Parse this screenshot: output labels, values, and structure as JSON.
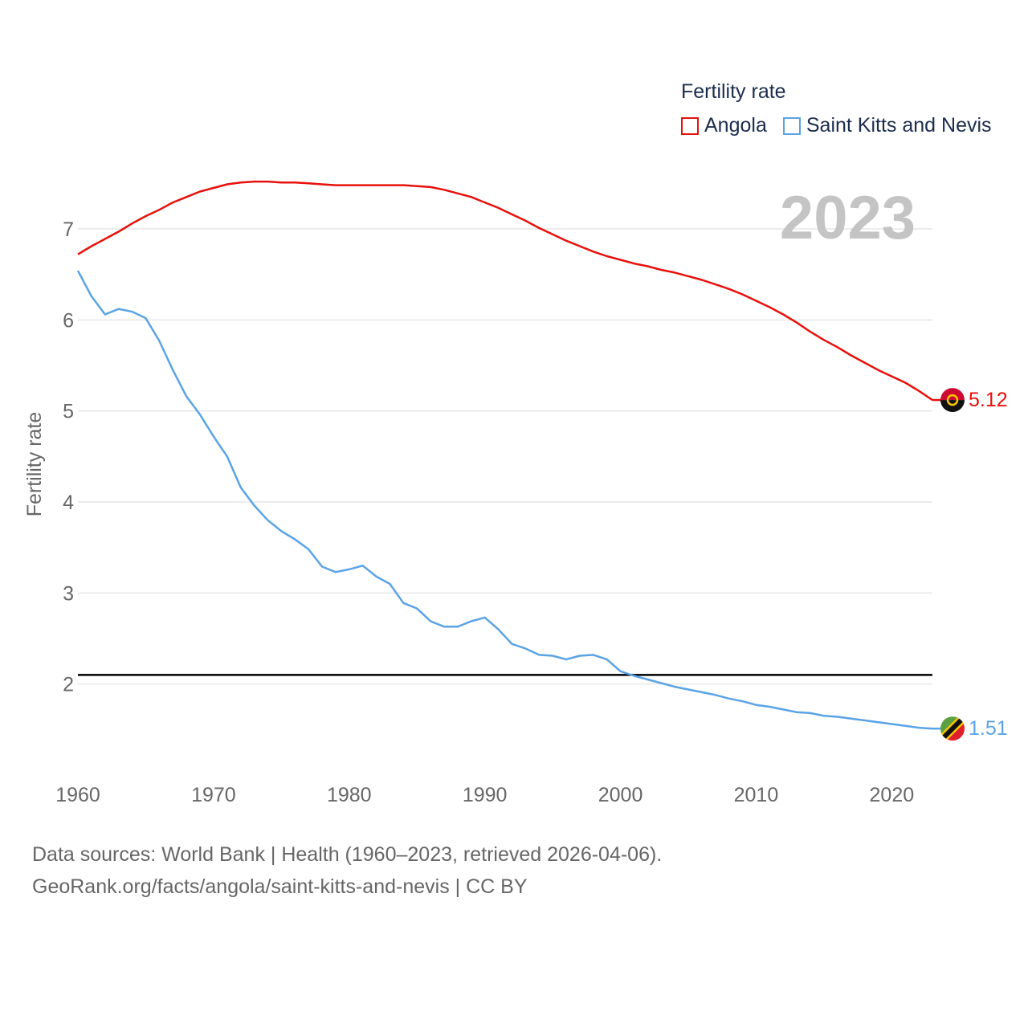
{
  "legend": {
    "title": "Fertility rate",
    "items": [
      {
        "label": "Angola",
        "color": "#e8100c"
      },
      {
        "label": "Saint Kitts and Nevis",
        "color": "#5aa3e6"
      }
    ]
  },
  "year_label": "2023",
  "footer": {
    "line1": "Data sources: World Bank | Health (1960–2023, retrieved 2026-04-06).",
    "line2": "GeoRank.org/facts/angola/saint-kitts-and-nevis | CC BY"
  },
  "chart_data": {
    "type": "line",
    "title": "",
    "xlabel": "",
    "ylabel": "Fertility rate",
    "xlim": [
      1960,
      2023
    ],
    "ylim": [
      1.0,
      7.75
    ],
    "xticks": [
      1960,
      1970,
      1980,
      1990,
      2000,
      2010,
      2020
    ],
    "yticks": [
      2,
      3,
      4,
      5,
      6,
      7
    ],
    "reference_line": {
      "y": 2.1,
      "color": "#000000"
    },
    "x": [
      1960,
      1961,
      1962,
      1963,
      1964,
      1965,
      1966,
      1967,
      1968,
      1969,
      1970,
      1971,
      1972,
      1973,
      1974,
      1975,
      1976,
      1977,
      1978,
      1979,
      1980,
      1981,
      1982,
      1983,
      1984,
      1985,
      1986,
      1987,
      1988,
      1989,
      1990,
      1991,
      1992,
      1993,
      1994,
      1995,
      1996,
      1997,
      1998,
      1999,
      2000,
      2001,
      2002,
      2003,
      2004,
      2005,
      2006,
      2007,
      2008,
      2009,
      2010,
      2011,
      2012,
      2013,
      2014,
      2015,
      2016,
      2017,
      2018,
      2019,
      2020,
      2021,
      2022,
      2023
    ],
    "series": [
      {
        "name": "Angola",
        "color": "#e8100c",
        "end_label": "5.12",
        "values": [
          6.72,
          6.81,
          6.89,
          6.97,
          7.06,
          7.14,
          7.21,
          7.29,
          7.35,
          7.41,
          7.45,
          7.49,
          7.51,
          7.52,
          7.52,
          7.51,
          7.51,
          7.5,
          7.49,
          7.48,
          7.48,
          7.48,
          7.48,
          7.48,
          7.48,
          7.47,
          7.46,
          7.43,
          7.39,
          7.35,
          7.29,
          7.23,
          7.16,
          7.09,
          7.01,
          6.94,
          6.87,
          6.81,
          6.75,
          6.7,
          6.66,
          6.62,
          6.59,
          6.55,
          6.52,
          6.48,
          6.44,
          6.39,
          6.34,
          6.28,
          6.21,
          6.14,
          6.06,
          5.97,
          5.87,
          5.78,
          5.7,
          5.61,
          5.53,
          5.45,
          5.38,
          5.31,
          5.22,
          5.12
        ]
      },
      {
        "name": "Saint Kitts and Nevis",
        "color": "#5aa3e6",
        "end_label": "1.51",
        "values": [
          6.54,
          6.26,
          6.06,
          6.12,
          6.09,
          6.02,
          5.77,
          5.45,
          5.16,
          4.96,
          4.72,
          4.5,
          4.16,
          3.96,
          3.8,
          3.68,
          3.59,
          3.48,
          3.29,
          3.23,
          3.26,
          3.3,
          3.18,
          3.1,
          2.89,
          2.83,
          2.69,
          2.63,
          2.63,
          2.69,
          2.73,
          2.6,
          2.44,
          2.39,
          2.32,
          2.31,
          2.27,
          2.31,
          2.32,
          2.27,
          2.14,
          2.09,
          2.05,
          2.01,
          1.97,
          1.94,
          1.91,
          1.88,
          1.84,
          1.81,
          1.77,
          1.75,
          1.72,
          1.69,
          1.68,
          1.65,
          1.64,
          1.62,
          1.6,
          1.58,
          1.56,
          1.54,
          1.52,
          1.51
        ]
      }
    ]
  }
}
